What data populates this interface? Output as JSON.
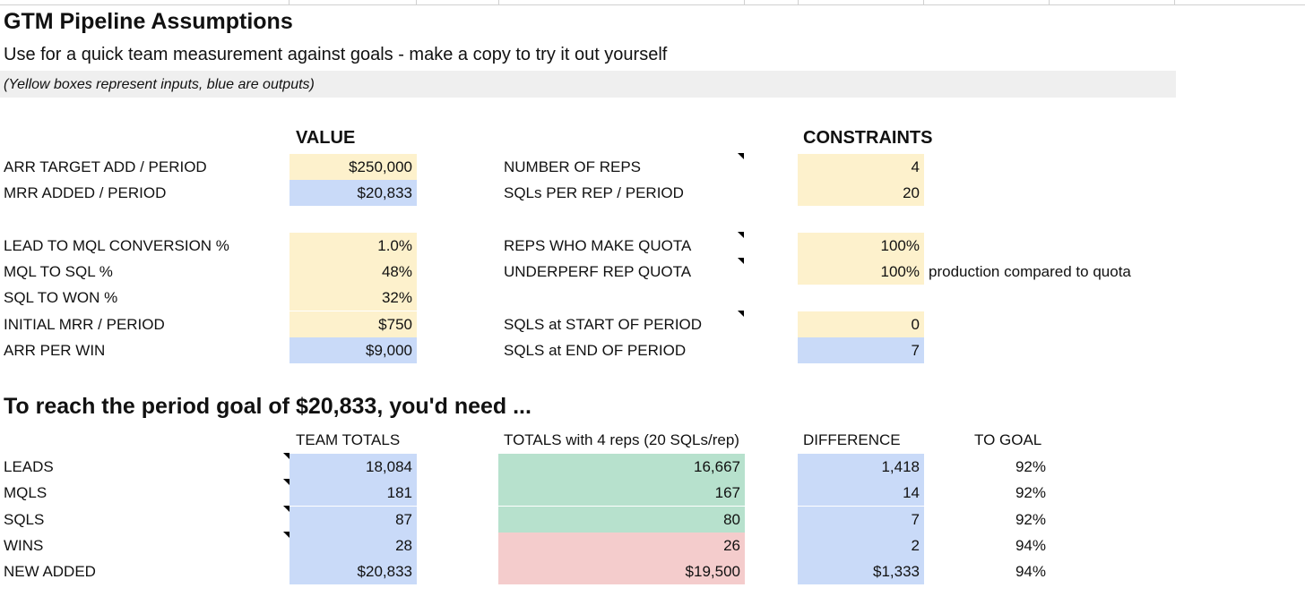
{
  "sheet": {
    "title": "GTM Pipeline Assumptions",
    "subtitle": "Use for a quick team measurement against goals - make a copy to try it out yourself",
    "note": "(Yellow boxes represent inputs, blue are outputs)"
  },
  "headers": {
    "value": "VALUE",
    "constraints": "CONSTRAINTS"
  },
  "inputs": {
    "arr_target_label": "ARR TARGET ADD / PERIOD",
    "arr_target_value": "$250,000",
    "mrr_added_label": "MRR ADDED / PERIOD",
    "mrr_added_value": "$20,833",
    "lead_mql_label": "LEAD TO MQL CONVERSION %",
    "lead_mql_value": "1.0%",
    "mql_sql_label": "MQL TO SQL %",
    "mql_sql_value": "48%",
    "sql_won_label": "SQL TO WON %",
    "sql_won_value": "32%",
    "initial_mrr_label": "INITIAL MRR / PERIOD",
    "initial_mrr_value": "$750",
    "arr_win_label": "ARR PER WIN",
    "arr_win_value": "$9,000"
  },
  "constraints": {
    "reps_label": "NUMBER OF REPS",
    "reps_value": "4",
    "sqls_rep_label": "SQLs PER REP / PERIOD",
    "sqls_rep_value": "20",
    "quota_label": "REPS WHO MAKE QUOTA",
    "quota_value": "100%",
    "underperf_label": "UNDERPERF REP QUOTA",
    "underperf_value": "100%",
    "underperf_note": "production compared to quota",
    "sqls_start_label": "SQLS at START OF PERIOD",
    "sqls_start_value": "0",
    "sqls_end_label": "SQLS at END OF PERIOD",
    "sqls_end_value": "7"
  },
  "goal": {
    "heading": "To reach the period goal of $20,833, you'd need ...",
    "col_team": "TEAM TOTALS",
    "col_reps": "TOTALS with 4 reps (20 SQLs/rep)",
    "col_diff": "DIFFERENCE",
    "col_togoal": "TO GOAL",
    "rows": [
      {
        "label": "LEADS",
        "team": "18,084",
        "reps": "16,667",
        "diff": "1,418",
        "togoal": "92%"
      },
      {
        "label": "MQLS",
        "team": "181",
        "reps": "167",
        "diff": "14",
        "togoal": "92%"
      },
      {
        "label": "SQLS",
        "team": "87",
        "reps": "80",
        "diff": "7",
        "togoal": "92%"
      },
      {
        "label": "WINS",
        "team": "28",
        "reps": "26",
        "diff": "2",
        "togoal": "94%"
      },
      {
        "label": "NEW ADDED",
        "team": "$20,833",
        "reps": "$19,500",
        "diff": "$1,333",
        "togoal": "94%"
      }
    ]
  },
  "colors": {
    "input": "#fdf1cc",
    "output": "#c9daf8",
    "on_target": "#b7e1cd",
    "below_target": "#f4cccc",
    "note_band": "#efefef"
  }
}
